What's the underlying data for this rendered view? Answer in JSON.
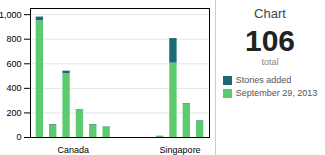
{
  "chart_data": {
    "type": "bar",
    "title": "Chart",
    "annotations": [
      "106",
      "total"
    ],
    "categories": [
      "Canada",
      "Canada",
      "Canada",
      "Canada",
      "Canada",
      "Canada",
      "Singapore",
      "Singapore",
      "Singapore",
      "Singapore"
    ],
    "series": [
      {
        "name": "September 29, 2013",
        "color": "#5cca6e",
        "values": [
          950,
          100,
          520,
          220,
          100,
          80,
          5,
          605,
          270,
          130
        ]
      },
      {
        "name": "Stories added",
        "color": "#1a6b72",
        "values": [
          30,
          5,
          20,
          5,
          5,
          5,
          5,
          200,
          5,
          5
        ]
      }
    ],
    "stacked": true,
    "ylim": [
      0,
      1050
    ],
    "yticks": [
      0,
      200,
      400,
      600,
      800,
      1000
    ],
    "grid": true,
    "legend": "right"
  }
}
